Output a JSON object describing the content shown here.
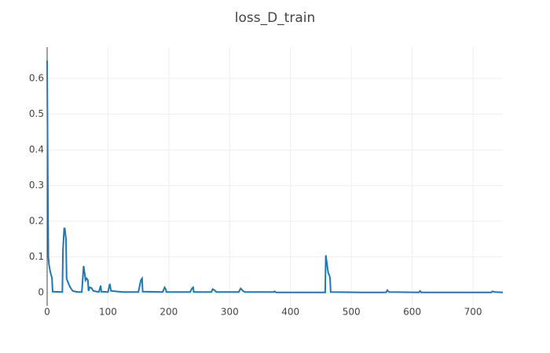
{
  "chart_data": {
    "type": "line",
    "title": "loss_D_train",
    "x": [
      0,
      1,
      2,
      3,
      5,
      8,
      9,
      25,
      26,
      28,
      29,
      31,
      32,
      34,
      38,
      42,
      50,
      57,
      60,
      62,
      63,
      65,
      67,
      68,
      70,
      73,
      76,
      85,
      88,
      89,
      100,
      103,
      105,
      125,
      150,
      154,
      156,
      157,
      190,
      193,
      195,
      196,
      235,
      238,
      240,
      241,
      270,
      272,
      276,
      278,
      315,
      318,
      322,
      325,
      372,
      374,
      376,
      420,
      457,
      458,
      460,
      462,
      464,
      465,
      466,
      520,
      557,
      559,
      562,
      611,
      613,
      615,
      730,
      732,
      736,
      749
    ],
    "series": [
      {
        "name": "loss_D_train",
        "color": "#1f77b4",
        "values": [
          0.65,
          0.35,
          0.1,
          0.08,
          0.06,
          0.04,
          0.003,
          0.002,
          0.12,
          0.18,
          0.18,
          0.15,
          0.04,
          0.03,
          0.015,
          0.005,
          0.002,
          0.002,
          0.075,
          0.05,
          0.035,
          0.04,
          0.035,
          0.005,
          0.015,
          0.013,
          0.005,
          0.002,
          0.02,
          0.003,
          0.002,
          0.025,
          0.005,
          0.002,
          0.002,
          0.035,
          0.04,
          0.003,
          0.002,
          0.015,
          0.01,
          0.002,
          0.002,
          0.012,
          0.015,
          0.002,
          0.002,
          0.01,
          0.006,
          0.002,
          0.002,
          0.012,
          0.005,
          0.002,
          0.002,
          0.004,
          0.001,
          0.001,
          0.001,
          0.105,
          0.08,
          0.055,
          0.048,
          0.04,
          0.002,
          0.001,
          0.001,
          0.007,
          0.002,
          0.001,
          0.005,
          0.001,
          0.001,
          0.004,
          0.002,
          0.001
        ]
      }
    ],
    "xlim": [
      0,
      749
    ],
    "ylim": [
      -0.037,
      0.688
    ],
    "xticks": [
      0,
      100,
      200,
      300,
      400,
      500,
      600,
      700
    ],
    "yticks": [
      0,
      0.1,
      0.2,
      0.3,
      0.4,
      0.5,
      0.6
    ],
    "grid": true
  }
}
